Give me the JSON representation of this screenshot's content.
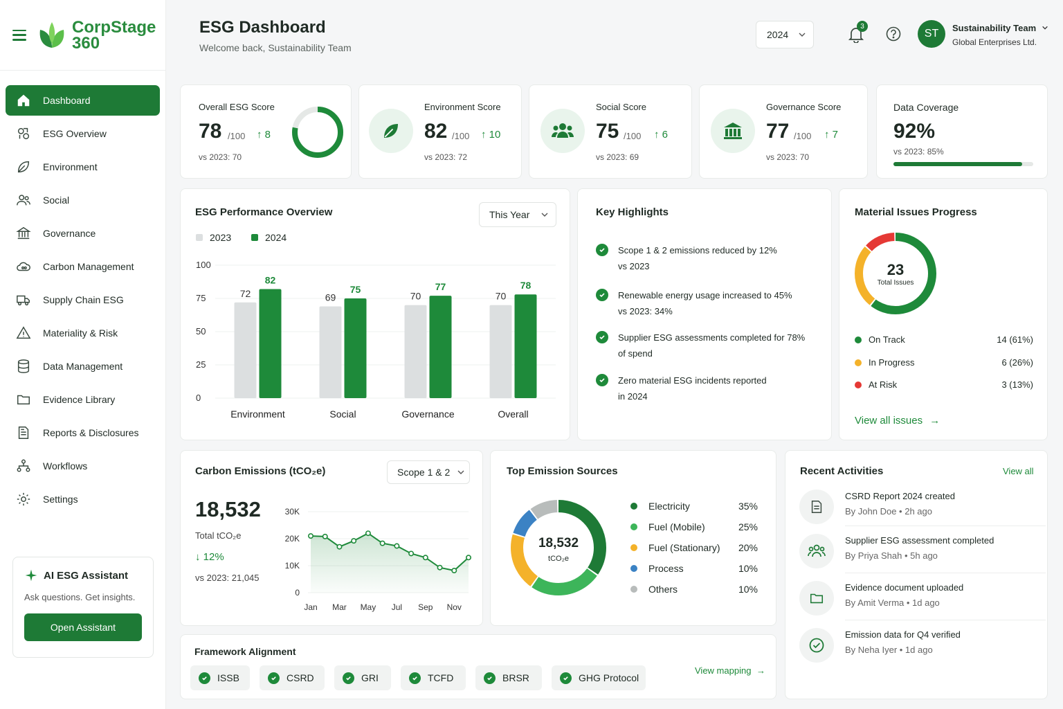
{
  "brand": {
    "name_line1": "CorpStage",
    "name_line2": "360"
  },
  "header": {
    "title": "ESG Dashboard",
    "welcome": "Welcome back, Sustainability Team",
    "year": "2024",
    "notifications_count": "3",
    "user_initials": "ST",
    "user_name": "Sustainability Team",
    "user_org": "Global Enterprises Ltd."
  },
  "sidebar": {
    "items": [
      {
        "label": "Dashboard",
        "icon": "home-icon",
        "active": true
      },
      {
        "label": "ESG Overview",
        "icon": "esg-overview-icon"
      },
      {
        "label": "Environment",
        "icon": "leaf-icon"
      },
      {
        "label": "Social",
        "icon": "users-icon"
      },
      {
        "label": "Governance",
        "icon": "building-icon"
      },
      {
        "label": "Carbon Management",
        "icon": "cloud-co2-icon"
      },
      {
        "label": "Supply Chain ESG",
        "icon": "truck-icon"
      },
      {
        "label": "Materiality & Risk",
        "icon": "warning-icon"
      },
      {
        "label": "Data Management",
        "icon": "database-icon"
      },
      {
        "label": "Evidence Library",
        "icon": "folder-icon"
      },
      {
        "label": "Reports & Disclosures",
        "icon": "document-icon"
      },
      {
        "label": "Workflows",
        "icon": "workflow-icon"
      },
      {
        "label": "Settings",
        "icon": "gear-icon"
      }
    ],
    "assistant": {
      "title": "AI ESG Assistant",
      "subtitle": "Ask questions. Get insights.",
      "button": "Open Assistant"
    }
  },
  "kpis": {
    "overall": {
      "label": "Overall ESG Score",
      "value": "78",
      "den": "/100",
      "delta": "8",
      "vs": "vs 2023: 70",
      "fraction": 0.78
    },
    "environment": {
      "label": "Environment Score",
      "value": "82",
      "den": "/100",
      "delta": "10",
      "vs": "vs 2023: 72"
    },
    "social": {
      "label": "Social Score",
      "value": "75",
      "den": "/100",
      "delta": "6",
      "vs": "vs 2023: 69"
    },
    "governance": {
      "label": "Governance Score",
      "value": "77",
      "den": "/100",
      "delta": "7",
      "vs": "vs 2023: 70"
    },
    "coverage": {
      "label": "Data Coverage",
      "value": "92%",
      "vs": "vs 2023: 85%",
      "fraction": 0.92
    }
  },
  "performance": {
    "title": "ESG Performance Overview",
    "period": "This Year",
    "legend_2023": "2023",
    "legend_2024": "2024"
  },
  "chart_data": [
    {
      "type": "bar",
      "title": "ESG Performance Overview",
      "categories": [
        "Environment",
        "Social",
        "Governance",
        "Overall"
      ],
      "series": [
        {
          "name": "2023",
          "values": [
            72,
            69,
            70,
            70
          ],
          "color": "#dcdfe0"
        },
        {
          "name": "2024",
          "values": [
            82,
            75,
            77,
            78
          ],
          "color": "#1e8a3a"
        }
      ],
      "yticks": [
        "0",
        "25",
        "50",
        "75",
        "100"
      ],
      "ylim": [
        0,
        100
      ]
    },
    {
      "type": "area",
      "title": "Carbon Emissions (tCO₂e)",
      "x": [
        "Jan",
        "Feb",
        "Mar",
        "Apr",
        "May",
        "Jun",
        "Jul",
        "Aug",
        "Sep",
        "Oct",
        "Nov",
        "Dec"
      ],
      "xticks": [
        "Jan",
        "Mar",
        "May",
        "Jul",
        "Sep",
        "Nov"
      ],
      "values": [
        21000,
        20800,
        17000,
        19200,
        22000,
        18300,
        17300,
        14500,
        13000,
        9300,
        8200,
        13000
      ],
      "yticks": [
        "0",
        "10K",
        "20K",
        "30K"
      ],
      "ylim": [
        0,
        30000
      ]
    },
    {
      "type": "pie",
      "title": "Top Emission Sources",
      "categories": [
        "Electricity",
        "Fuel (Mobile)",
        "Fuel (Stationary)",
        "Process",
        "Others"
      ],
      "values": [
        35,
        25,
        20,
        10,
        10
      ],
      "colors": [
        "#1e7a36",
        "#3db55a",
        "#f4b22a",
        "#3b82c4",
        "#b8bcbb"
      ]
    },
    {
      "type": "pie",
      "title": "Material Issues Progress",
      "categories": [
        "On Track",
        "In Progress",
        "At Risk"
      ],
      "values": [
        14,
        6,
        3
      ],
      "colors": [
        "#1e8a3a",
        "#f4b22a",
        "#e53935"
      ]
    }
  ],
  "highlights": {
    "title": "Key Highlights",
    "items": [
      {
        "line1": "Scope 1 & 2 emissions reduced by 12%",
        "line2": "vs 2023"
      },
      {
        "line1": "Renewable energy usage increased to 45%",
        "line2": "vs 2023: 34%"
      },
      {
        "line1": "Supplier ESG assessments completed for 78%",
        "line2": "of spend"
      },
      {
        "line1": "Zero material ESG incidents reported",
        "line2": "in 2024"
      }
    ]
  },
  "material": {
    "title": "Material Issues Progress",
    "total": "23",
    "total_label": "Total Issues",
    "rows": [
      {
        "label": "On Track",
        "value": "14 (61%)",
        "color": "#1e8a3a"
      },
      {
        "label": "In Progress",
        "value": "6 (26%)",
        "color": "#f4b22a"
      },
      {
        "label": "At Risk",
        "value": "3 (13%)",
        "color": "#e53935"
      }
    ],
    "link": "View all issues"
  },
  "carbon": {
    "title": "Carbon Emissions (tCO₂e)",
    "scope": "Scope 1 & 2",
    "total": "18,532",
    "total_label": "Total tCO₂e",
    "delta": "12%",
    "vs": "vs 2023: 21,045"
  },
  "sources": {
    "title": "Top Emission Sources",
    "center_value": "18,532",
    "center_unit": "tCO₂e",
    "rows": [
      {
        "label": "Electricity",
        "pct": "35%"
      },
      {
        "label": "Fuel (Mobile)",
        "pct": "25%"
      },
      {
        "label": "Fuel (Stationary)",
        "pct": "20%"
      },
      {
        "label": "Process",
        "pct": "10%"
      },
      {
        "label": "Others",
        "pct": "10%"
      }
    ]
  },
  "activities": {
    "title": "Recent Activities",
    "view_all": "View all",
    "items": [
      {
        "title": "CSRD Report 2024 created",
        "by": "By John Doe • 2h ago",
        "icon": "document-icon"
      },
      {
        "title": "Supplier ESG assessment completed",
        "by": "By Priya Shah • 5h ago",
        "icon": "users-icon"
      },
      {
        "title": "Evidence document uploaded",
        "by": "By Amit Verma • 1d ago",
        "icon": "folder-icon"
      },
      {
        "title": "Emission data for Q4 verified",
        "by": "By Neha Iyer • 1d ago",
        "icon": "check-circle-icon"
      }
    ]
  },
  "framework": {
    "title": "Framework Alignment",
    "chips": [
      "ISSB",
      "CSRD",
      "GRI",
      "TCFD",
      "BRSR",
      "GHG Protocol"
    ],
    "link": "View mapping"
  }
}
